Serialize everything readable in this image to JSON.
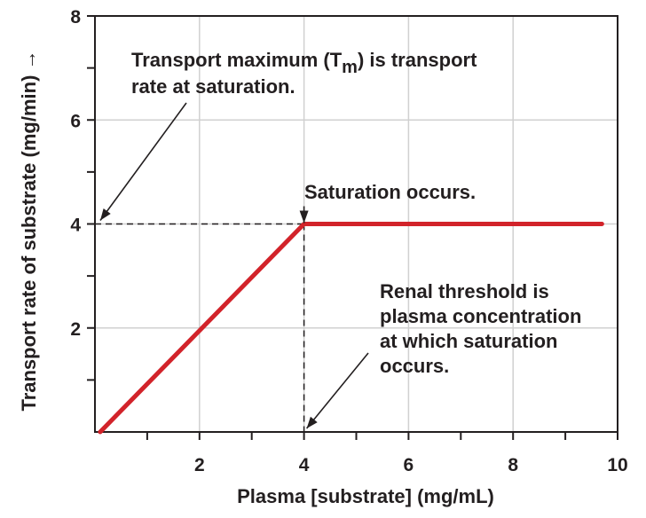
{
  "chart_data": {
    "type": "line",
    "xlabel": "Plasma [substrate] (mg/mL)",
    "ylabel": "Transport rate of substrate (mg/min) →",
    "xlim": [
      0,
      10
    ],
    "ylim": [
      0,
      8
    ],
    "x_ticks": [
      1,
      2,
      3,
      4,
      5,
      6,
      7,
      8,
      9,
      10
    ],
    "x_tick_labels": [
      "2",
      "4",
      "6",
      "8",
      "10"
    ],
    "x_labeled_values": [
      2,
      4,
      6,
      8,
      10
    ],
    "y_ticks": [
      1,
      2,
      3,
      4,
      5,
      6,
      7,
      8
    ],
    "y_tick_labels": [
      "2",
      "4",
      "6",
      "8"
    ],
    "y_labeled_values": [
      2,
      4,
      6,
      8
    ],
    "grid": true,
    "series": [
      {
        "name": "transport rate",
        "color": "#d2232a",
        "x": [
          0.1,
          4,
          9.7
        ],
        "y": [
          0,
          4,
          4
        ]
      }
    ],
    "saturation_point": {
      "x": 4,
      "y": 4
    },
    "annotations": {
      "tm_line1_pre": "Transport maximum (T",
      "tm_sub": "m",
      "tm_line1_post": ") is transport",
      "tm_line2": "rate at saturation.",
      "saturation": "Saturation occurs.",
      "threshold_lines": [
        "Renal threshold is",
        "plasma concentration",
        "at which saturation",
        "occurs."
      ]
    }
  }
}
